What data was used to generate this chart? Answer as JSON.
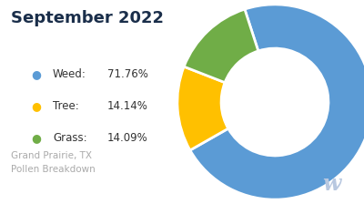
{
  "title": "September 2022",
  "subtitle": "Grand Prairie, TX\nPollen Breakdown",
  "categories": [
    "Weed",
    "Tree",
    "Grass"
  ],
  "values": [
    71.76,
    14.14,
    14.09
  ],
  "labels": [
    "71.76%",
    "14.14%",
    "14.09%"
  ],
  "colors": [
    "#5B9BD5",
    "#FFC000",
    "#70AD47"
  ],
  "background_color": "#ffffff",
  "title_color": "#1a2e4a",
  "legend_label_color": "#333333",
  "subtitle_color": "#aaaaaa",
  "watermark_color": "#b8c8e0",
  "start_angle": 108,
  "donut_width": 0.45
}
